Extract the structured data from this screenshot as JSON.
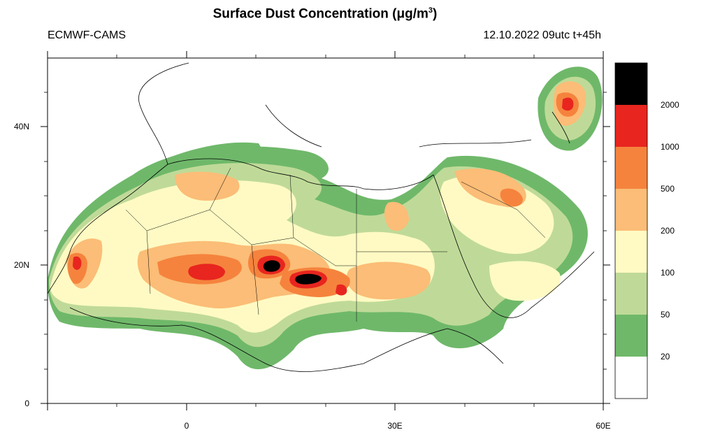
{
  "title_main": "Surface Dust Concentration (",
  "title_unit_mu": "μ",
  "title_unit_rest": "g/m",
  "title_sup": "3",
  "title_close": ")",
  "model": "ECMWF-CAMS",
  "run": "12.10.2022 09utc t+45h",
  "y_ticks": [
    "40N",
    "20N",
    "0"
  ],
  "x_ticks": [
    "0",
    "30E",
    "60E"
  ],
  "colorbar": {
    "labels": [
      "2000",
      "1000",
      "500",
      "200",
      "100",
      "50",
      "20"
    ],
    "colors": [
      "#000000",
      "#e8251f",
      "#f5833d",
      "#fbbd77",
      "#fffac3",
      "#bfda98",
      "#6fb86a",
      "#ffffff"
    ]
  },
  "map_extent": {
    "lon": [
      -20,
      60
    ],
    "lat": [
      0,
      50
    ]
  }
}
